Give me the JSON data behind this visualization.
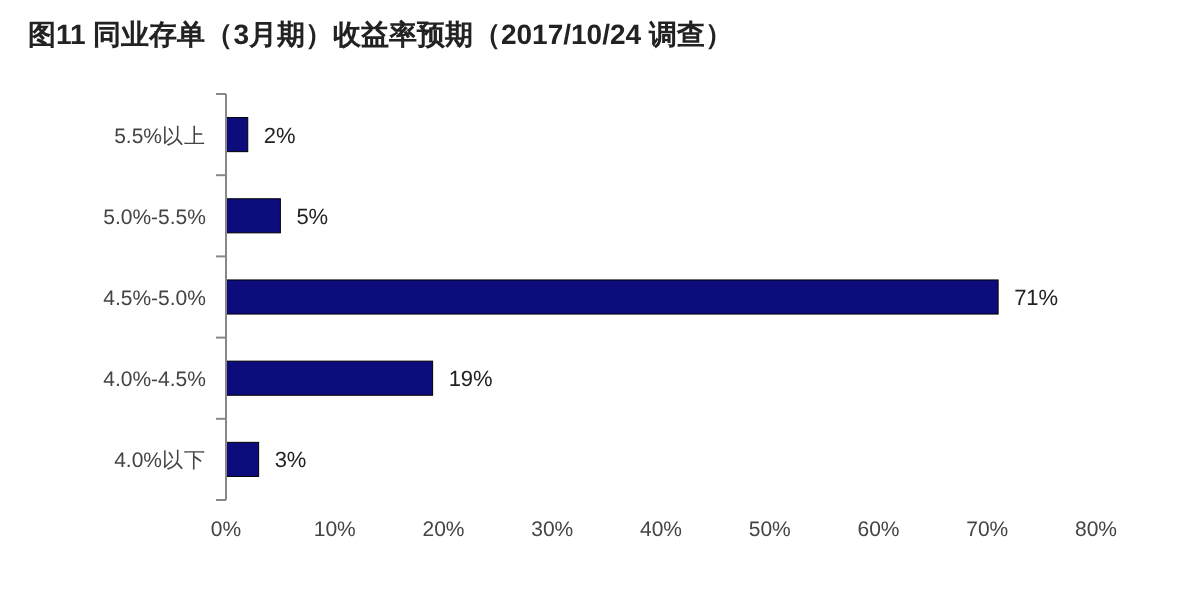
{
  "chart_data": {
    "type": "bar",
    "title": "图11 同业存单（3月期）收益率预期（2017/10/24 调查）",
    "orientation": "horizontal",
    "categories": [
      "5.5%以上",
      "5.0%-5.5%",
      "4.5%-5.0%",
      "4.0%-4.5%",
      "4.0%以下"
    ],
    "values": [
      2,
      5,
      71,
      19,
      3
    ],
    "value_labels": [
      "2%",
      "5%",
      "71%",
      "19%",
      "3%"
    ],
    "color": "#0c0c7c",
    "xlim": [
      0,
      80
    ],
    "xticks": [
      {
        "value": 0,
        "label": "0%"
      },
      {
        "value": 10,
        "label": "10%"
      },
      {
        "value": 20,
        "label": "20%"
      },
      {
        "value": 30,
        "label": "30%"
      },
      {
        "value": 40,
        "label": "40%"
      },
      {
        "value": 50,
        "label": "50%"
      },
      {
        "value": 60,
        "label": "60%"
      },
      {
        "value": 70,
        "label": "70%"
      },
      {
        "value": 80,
        "label": "80%"
      }
    ],
    "grid": false
  }
}
